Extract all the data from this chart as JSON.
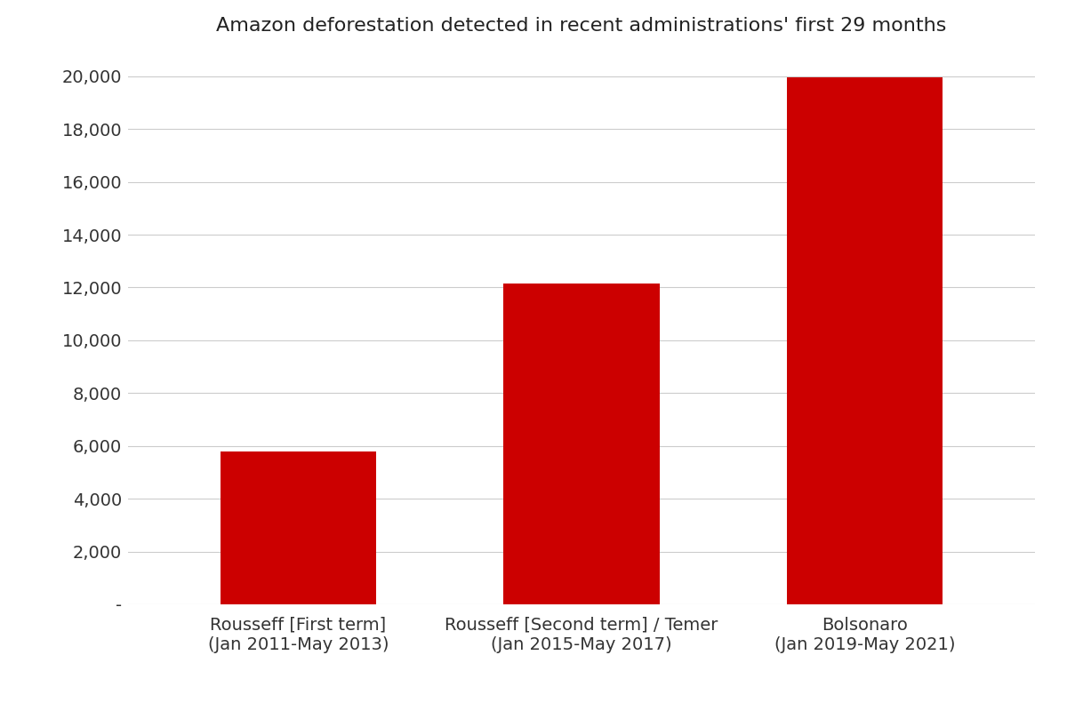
{
  "title": "Amazon deforestation detected in recent administrations' first 29 months",
  "categories": [
    "Rousseff [First term]\n(Jan 2011-May 2013)",
    "Rousseff [Second term] / Temer\n(Jan 2015-May 2017)",
    "Bolsonaro\n(Jan 2019-May 2021)"
  ],
  "values": [
    5800,
    12150,
    19950
  ],
  "bar_color": "#cc0000",
  "background_color": "#ffffff",
  "ylim": [
    0,
    21000
  ],
  "yticks": [
    0,
    2000,
    4000,
    6000,
    8000,
    10000,
    12000,
    14000,
    16000,
    18000,
    20000
  ],
  "ytick_labels": [
    "-",
    "2,000",
    "4,000",
    "6,000",
    "8,000",
    "10,000",
    "12,000",
    "14,000",
    "16,000",
    "18,000",
    "20,000"
  ],
  "title_fontsize": 16,
  "tick_fontsize": 14,
  "grid_color": "#cccccc",
  "bar_width": 0.55
}
